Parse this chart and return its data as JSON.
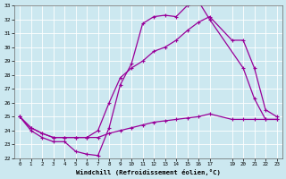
{
  "xlabel": "Windchill (Refroidissement éolien,°C)",
  "bg_color": "#cce8f0",
  "line_color": "#990099",
  "ylim": [
    22,
    33
  ],
  "xlim": [
    -0.5,
    23.5
  ],
  "yticks": [
    22,
    23,
    24,
    25,
    26,
    27,
    28,
    29,
    30,
    31,
    32,
    33
  ],
  "xticks": [
    0,
    1,
    2,
    3,
    4,
    5,
    6,
    7,
    8,
    9,
    10,
    11,
    12,
    13,
    14,
    15,
    16,
    17,
    19,
    20,
    21,
    22,
    23
  ],
  "xtick_labels": [
    "0",
    "1",
    "2",
    "3",
    "4",
    "5",
    "6",
    "7",
    "8",
    "9",
    "10",
    "11",
    "12",
    "13",
    "14",
    "15",
    "16",
    "17",
    "19",
    "20",
    "21",
    "22",
    "23"
  ],
  "series1_x": [
    0,
    1,
    2,
    3,
    4,
    5,
    6,
    7,
    8,
    9,
    10,
    11,
    12,
    13,
    14,
    15,
    16,
    17,
    20,
    21,
    22,
    23
  ],
  "series1_y": [
    25,
    24,
    23.5,
    23.2,
    23.2,
    22.5,
    22.3,
    22.2,
    24.2,
    27.3,
    28.8,
    31.7,
    32.2,
    32.3,
    32.2,
    33.0,
    33.3,
    32.0,
    28.5,
    26.3,
    24.8,
    24.8
  ],
  "series2_x": [
    0,
    1,
    2,
    3,
    4,
    5,
    6,
    7,
    8,
    9,
    10,
    11,
    12,
    13,
    14,
    15,
    16,
    17,
    19,
    20,
    21,
    22,
    23
  ],
  "series2_y": [
    25,
    24.2,
    23.8,
    23.5,
    23.5,
    23.5,
    23.5,
    24.0,
    26.0,
    27.8,
    28.5,
    29.0,
    29.7,
    30.0,
    30.5,
    31.2,
    31.8,
    32.2,
    30.5,
    30.5,
    28.5,
    25.5,
    25.0
  ],
  "series3_x": [
    0,
    1,
    2,
    3,
    4,
    5,
    6,
    7,
    8,
    9,
    10,
    11,
    12,
    13,
    14,
    15,
    16,
    17,
    19,
    20,
    21,
    22,
    23
  ],
  "series3_y": [
    25,
    24.2,
    23.8,
    23.5,
    23.5,
    23.5,
    23.5,
    23.5,
    23.8,
    24.0,
    24.2,
    24.4,
    24.6,
    24.7,
    24.8,
    24.9,
    25.0,
    25.2,
    24.8,
    24.8,
    24.8,
    24.8,
    24.8
  ]
}
